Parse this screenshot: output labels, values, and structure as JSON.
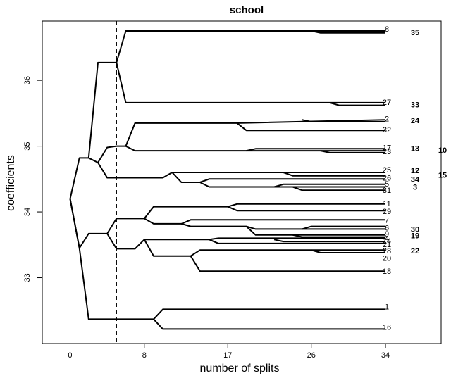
{
  "chart_data": {
    "type": "line",
    "title": "school",
    "xlabel": "number of splits",
    "ylabel": "coefficients",
    "xlim": [
      -3,
      40
    ],
    "ylim": [
      32.0,
      36.9
    ],
    "x_ticks": [
      0,
      8,
      17,
      26,
      34
    ],
    "y_ticks": [
      33,
      34,
      35,
      36
    ],
    "vline_x": 5,
    "colors": {
      "line": "#000000",
      "frame": "#000000"
    },
    "paths": [
      [
        [
          0,
          34.2
        ],
        [
          1,
          34.82
        ],
        [
          2,
          34.82
        ],
        [
          3,
          36.27
        ],
        [
          4,
          36.27
        ],
        [
          5,
          36.27
        ],
        [
          6,
          36.75
        ],
        [
          34,
          36.75
        ]
      ],
      [
        [
          34,
          36.72
        ],
        [
          27,
          36.72
        ],
        [
          26,
          36.75
        ]
      ],
      [
        [
          5,
          36.27
        ],
        [
          6,
          35.66
        ],
        [
          34,
          35.66
        ]
      ],
      [
        [
          34,
          35.62
        ],
        [
          29,
          35.62
        ],
        [
          28,
          35.66
        ]
      ],
      [
        [
          2,
          34.82
        ],
        [
          3,
          34.75
        ],
        [
          4,
          34.98
        ],
        [
          5,
          35.0
        ],
        [
          6,
          35.0
        ],
        [
          7,
          35.35
        ],
        [
          18,
          35.35
        ],
        [
          34,
          35.4
        ]
      ],
      [
        [
          34,
          35.37
        ],
        [
          26,
          35.37
        ],
        [
          25,
          35.4
        ]
      ],
      [
        [
          18,
          35.35
        ],
        [
          19,
          35.24
        ],
        [
          34,
          35.24
        ]
      ],
      [
        [
          6,
          35.0
        ],
        [
          7,
          34.93
        ],
        [
          34,
          34.93
        ]
      ],
      [
        [
          34,
          34.96
        ],
        [
          20,
          34.96
        ],
        [
          19,
          34.93
        ]
      ],
      [
        [
          34,
          34.9
        ],
        [
          28,
          34.9
        ],
        [
          27,
          34.93
        ]
      ],
      [
        [
          3,
          34.75
        ],
        [
          4,
          34.52
        ],
        [
          10,
          34.52
        ],
        [
          11,
          34.6
        ],
        [
          34,
          34.6
        ]
      ],
      [
        [
          34,
          34.55
        ],
        [
          24,
          34.55
        ],
        [
          23,
          34.6
        ]
      ],
      [
        [
          11,
          34.6
        ],
        [
          12,
          34.45
        ],
        [
          14,
          34.45
        ],
        [
          15,
          34.38
        ],
        [
          34,
          34.38
        ]
      ],
      [
        [
          14,
          34.45
        ],
        [
          15,
          34.5
        ],
        [
          34,
          34.5
        ]
      ],
      [
        [
          34,
          34.42
        ],
        [
          23,
          34.42
        ],
        [
          22,
          34.38
        ]
      ],
      [
        [
          34,
          34.33
        ],
        [
          25,
          34.33
        ],
        [
          24,
          34.38
        ]
      ],
      [
        [
          0,
          34.2
        ],
        [
          1,
          33.45
        ],
        [
          2,
          33.67
        ],
        [
          4,
          33.67
        ],
        [
          5,
          33.9
        ],
        [
          8,
          33.9
        ],
        [
          9,
          34.08
        ],
        [
          17,
          34.08
        ],
        [
          18,
          34.12
        ],
        [
          34,
          34.12
        ]
      ],
      [
        [
          17,
          34.08
        ],
        [
          18,
          34.02
        ],
        [
          34,
          34.02
        ]
      ],
      [
        [
          8,
          33.9
        ],
        [
          9,
          33.82
        ],
        [
          12,
          33.82
        ],
        [
          13,
          33.88
        ],
        [
          34,
          33.88
        ]
      ],
      [
        [
          12,
          33.82
        ],
        [
          13,
          33.78
        ],
        [
          19,
          33.78
        ],
        [
          20,
          33.74
        ],
        [
          34,
          33.74
        ]
      ],
      [
        [
          34,
          33.78
        ],
        [
          26,
          33.78
        ],
        [
          25,
          33.74
        ]
      ],
      [
        [
          19,
          33.78
        ],
        [
          20,
          33.65
        ],
        [
          34,
          33.65
        ]
      ],
      [
        [
          34,
          33.62
        ],
        [
          25,
          33.62
        ],
        [
          24,
          33.65
        ]
      ],
      [
        [
          4,
          33.67
        ],
        [
          5,
          33.44
        ],
        [
          7,
          33.44
        ],
        [
          8,
          33.58
        ],
        [
          15,
          33.58
        ],
        [
          16,
          33.52
        ],
        [
          34,
          33.52
        ]
      ],
      [
        [
          15,
          33.58
        ],
        [
          16,
          33.6
        ],
        [
          34,
          33.6
        ]
      ],
      [
        [
          34,
          33.55
        ],
        [
          23,
          33.55
        ],
        [
          22,
          33.58
        ]
      ],
      [
        [
          8,
          33.58
        ],
        [
          9,
          33.33
        ],
        [
          13,
          33.33
        ],
        [
          14,
          33.42
        ],
        [
          34,
          33.42
        ]
      ],
      [
        [
          34,
          33.38
        ],
        [
          27,
          33.38
        ],
        [
          26,
          33.42
        ]
      ],
      [
        [
          13,
          33.33
        ],
        [
          14,
          33.1
        ],
        [
          34,
          33.1
        ]
      ],
      [
        [
          0,
          34.2
        ],
        [
          1,
          33.45
        ],
        [
          2,
          32.37
        ],
        [
          9,
          32.37
        ],
        [
          10,
          32.52
        ],
        [
          34,
          32.52
        ]
      ],
      [
        [
          9,
          32.37
        ],
        [
          10,
          32.22
        ],
        [
          34,
          32.22
        ]
      ]
    ],
    "end_labels": [
      {
        "text": "8",
        "col": 1,
        "y": 36.78,
        "bold": false
      },
      {
        "text": "35",
        "col": 2,
        "y": 36.73,
        "bold": true
      },
      {
        "text": "27",
        "col": 1,
        "y": 35.67,
        "bold": false
      },
      {
        "text": "33",
        "col": 2,
        "y": 35.63,
        "bold": true
      },
      {
        "text": "2",
        "col": 1,
        "y": 35.42,
        "bold": false
      },
      {
        "text": "24",
        "col": 2,
        "y": 35.39,
        "bold": true
      },
      {
        "text": "32",
        "col": 1,
        "y": 35.25,
        "bold": false
      },
      {
        "text": "17",
        "col": 1,
        "y": 34.98,
        "bold": false
      },
      {
        "text": "13",
        "col": 2,
        "y": 34.97,
        "bold": true
      },
      {
        "text": "10",
        "col": 3,
        "y": 34.94,
        "bold": true
      },
      {
        "text": "23",
        "col": 1,
        "y": 34.92,
        "bold": false
      },
      {
        "text": "25",
        "col": 1,
        "y": 34.64,
        "bold": false
      },
      {
        "text": "12",
        "col": 2,
        "y": 34.63,
        "bold": true
      },
      {
        "text": "15",
        "col": 3,
        "y": 34.56,
        "bold": true
      },
      {
        "text": "26",
        "col": 1,
        "y": 34.52,
        "bold": false
      },
      {
        "text": "34",
        "col": 2,
        "y": 34.5,
        "bold": true
      },
      {
        "text": "5",
        "col": 1,
        "y": 34.43,
        "bold": false
      },
      {
        "text": "3",
        "col": 2,
        "y": 34.38,
        "bold": true
      },
      {
        "text": "31",
        "col": 1,
        "y": 34.33,
        "bold": false
      },
      {
        "text": "11",
        "col": 1,
        "y": 34.13,
        "bold": false
      },
      {
        "text": "29",
        "col": 1,
        "y": 34.01,
        "bold": false
      },
      {
        "text": "7",
        "col": 1,
        "y": 33.88,
        "bold": false
      },
      {
        "text": "6",
        "col": 1,
        "y": 33.76,
        "bold": false
      },
      {
        "text": "30",
        "col": 2,
        "y": 33.74,
        "bold": true
      },
      {
        "text": "9",
        "col": 1,
        "y": 33.67,
        "bold": false
      },
      {
        "text": "19",
        "col": 2,
        "y": 33.64,
        "bold": true
      },
      {
        "text": "4",
        "col": 1,
        "y": 33.6,
        "bold": false
      },
      {
        "text": "14",
        "col": 1,
        "y": 33.56,
        "bold": false
      },
      {
        "text": "21",
        "col": 1,
        "y": 33.51,
        "bold": false
      },
      {
        "text": "28",
        "col": 1,
        "y": 33.41,
        "bold": false
      },
      {
        "text": "22",
        "col": 2,
        "y": 33.41,
        "bold": true
      },
      {
        "text": "20",
        "col": 1,
        "y": 33.3,
        "bold": false
      },
      {
        "text": "18",
        "col": 1,
        "y": 33.1,
        "bold": false
      },
      {
        "text": "1",
        "col": 1,
        "y": 32.56,
        "bold": false
      },
      {
        "text": "16",
        "col": 1,
        "y": 32.25,
        "bold": false
      }
    ]
  }
}
